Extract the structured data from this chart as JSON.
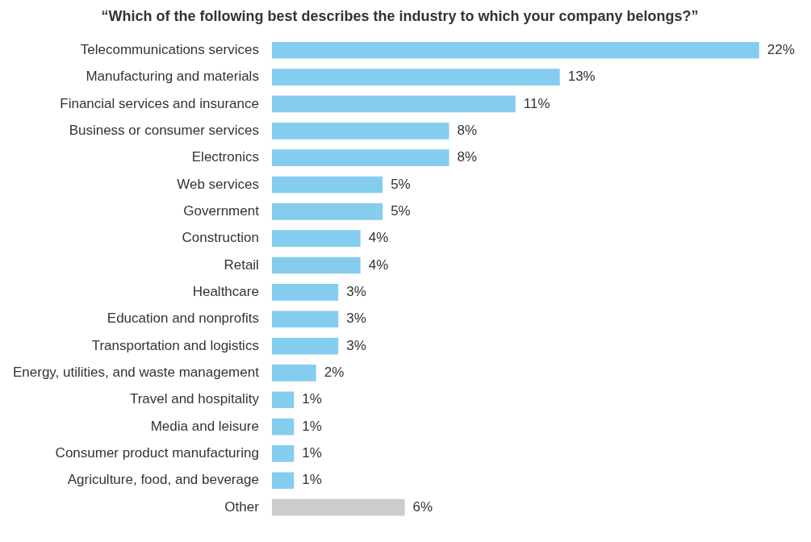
{
  "chart_data": {
    "type": "bar",
    "orientation": "horizontal",
    "title": "“Which of the following best describes the industry to which your company belongs?”",
    "categories": [
      "Telecommunications services",
      "Manufacturing and materials",
      "Financial services and insurance",
      "Business or consumer services",
      "Electronics",
      "Web services",
      "Government",
      "Construction",
      "Retail",
      "Healthcare",
      "Education and nonprofits",
      "Transportation and logistics",
      "Energy, utilities, and waste management",
      "Travel and hospitality",
      "Media and leisure",
      "Consumer product manufacturing",
      "Agriculture, food, and beverage",
      "Other"
    ],
    "values": [
      22,
      13,
      11,
      8,
      8,
      5,
      5,
      4,
      4,
      3,
      3,
      3,
      2,
      1,
      1,
      1,
      1,
      6
    ],
    "value_labels": [
      "22%",
      "13%",
      "11%",
      "8%",
      "8%",
      "5%",
      "5%",
      "4%",
      "4%",
      "3%",
      "3%",
      "3%",
      "2%",
      "1%",
      "1%",
      "1%",
      "1%",
      "6%"
    ],
    "colors": [
      "#85cdee",
      "#85cdee",
      "#85cdee",
      "#85cdee",
      "#85cdee",
      "#85cdee",
      "#85cdee",
      "#85cdee",
      "#85cdee",
      "#85cdee",
      "#85cdee",
      "#85cdee",
      "#85cdee",
      "#85cdee",
      "#85cdee",
      "#85cdee",
      "#85cdee",
      "#cccccc"
    ],
    "legend": false
  }
}
